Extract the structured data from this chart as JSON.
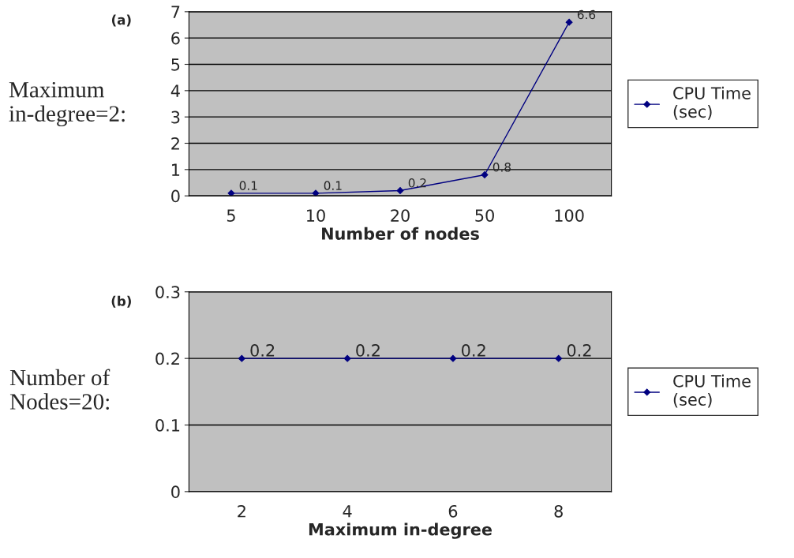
{
  "chart_data": [
    {
      "type": "line",
      "categories": [
        "5",
        "10",
        "20",
        "50",
        "100"
      ],
      "series": [
        {
          "name": "CPU Time\n(sec)",
          "color": "#000080",
          "values": [
            0.1,
            0.1,
            0.2,
            0.8,
            6.6
          ]
        }
      ],
      "ylim": [
        0,
        7
      ],
      "yticks": [
        0,
        1,
        2,
        3,
        4,
        5,
        6,
        7
      ],
      "xlabel": "Number of nodes",
      "ylabel": "Maximum\nin-degree=2:",
      "annotations": [
        "(a)"
      ],
      "data_labels": true,
      "grid": "y",
      "legend": "right",
      "marker": "diamond",
      "line_style": "solid"
    },
    {
      "type": "line",
      "categories": [
        "2",
        "4",
        "6",
        "8"
      ],
      "series": [
        {
          "name": "CPU Time\n(sec)",
          "color": "#000080",
          "values": [
            0.2,
            0.2,
            0.2,
            0.2
          ]
        }
      ],
      "ylim": [
        0,
        0.3
      ],
      "yticks": [
        0,
        0.1,
        0.2,
        0.3
      ],
      "xlabel": "Maximum in-degree",
      "ylabel": "Number of\nNodes=20:",
      "annotations": [
        "(b)"
      ],
      "data_labels": true,
      "grid": "y",
      "legend": "right",
      "marker": "diamond",
      "line_style": "solid"
    }
  ]
}
